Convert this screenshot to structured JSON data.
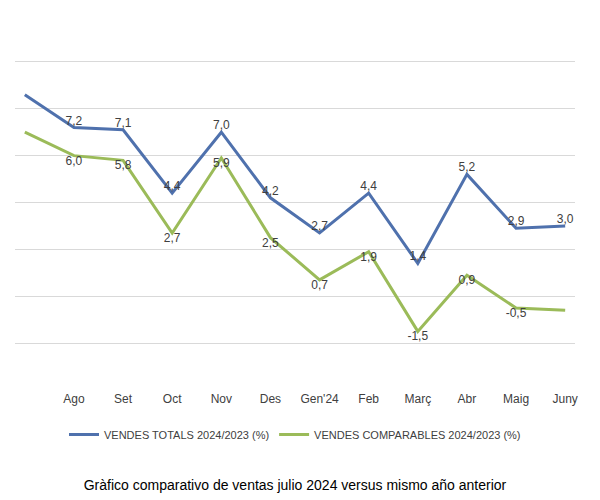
{
  "chart_data": {
    "type": "line",
    "title": "Gràfico comparativo de ventas julio 2024 versus mismo año anterior",
    "categories": [
      null,
      "Ago",
      "Set",
      "Oct",
      "Nov",
      "Des",
      "Gen'24",
      "Feb",
      "Març",
      "Abr",
      "Maig",
      "Juny"
    ],
    "series": [
      {
        "name": "VENDES TOTALS 2024/2023 (%)",
        "color": "#4f71ad",
        "values": [
          8.6,
          7.2,
          7.1,
          4.4,
          7.0,
          4.2,
          2.7,
          4.4,
          1.4,
          5.2,
          2.9,
          3.0
        ],
        "value_labels": [
          null,
          "7,2",
          "7,1",
          "4,4",
          "7,0",
          "4,2",
          "2,7",
          "4,4",
          "1,4",
          "5,2",
          "2,9",
          "3,0"
        ]
      },
      {
        "name": "VENDES COMPARABLES 2024/2023 (%)",
        "color": "#9bbb59",
        "values": [
          7.0,
          6.0,
          5.8,
          2.7,
          5.9,
          2.5,
          0.7,
          1.9,
          -1.5,
          0.9,
          -0.5,
          -0.6
        ],
        "value_labels": [
          null,
          "6,0",
          "5,8",
          "2,7",
          "5,9",
          "2,5",
          "0,7",
          "1,9",
          "-1,5",
          "0,9",
          "-0,5",
          null
        ]
      }
    ],
    "ylim": [
      -4,
      12
    ],
    "yticks": [
      -4,
      -2,
      0,
      2,
      4,
      6,
      8,
      10,
      12
    ],
    "grid": true,
    "legend": "bottom",
    "data_labels": true,
    "tick_labels": "x"
  }
}
